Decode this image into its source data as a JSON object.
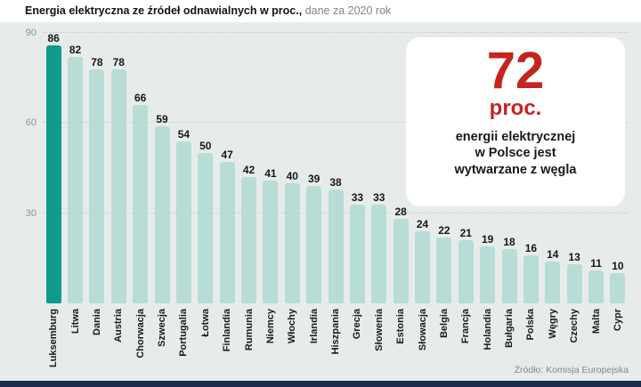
{
  "title": {
    "main": "Energia elektryczna ze źródeł odnawialnych w proc.,",
    "sub": " dane za 2020 rok"
  },
  "callout": {
    "number": "72",
    "unit": "proc.",
    "line1": "energii elektrycznej",
    "line2": "w Polsce jest",
    "line3": "wytwarzane z węgla"
  },
  "source": "Źródło: Komisja Europejska",
  "chart_data": {
    "type": "bar",
    "title": "Energia elektryczna ze źródeł odnawialnych w proc.",
    "subtitle": "dane za 2020 rok",
    "categories": [
      "Luksemburg",
      "Litwa",
      "Dania",
      "Austria",
      "Chorwacja",
      "Szwecja",
      "Portugalia",
      "Łotwa",
      "Finlandia",
      "Rumunia",
      "Niemcy",
      "Włochy",
      "Irlandia",
      "Hiszpania",
      "Grecja",
      "Słowenia",
      "Estonia",
      "Słowacja",
      "Belgia",
      "Francja",
      "Holandia",
      "Bułgaria",
      "Polska",
      "Węgry",
      "Czechy",
      "Malta",
      "Cypr"
    ],
    "values": [
      86,
      82,
      78,
      78,
      66,
      59,
      54,
      50,
      47,
      42,
      41,
      40,
      39,
      38,
      33,
      33,
      28,
      24,
      22,
      21,
      19,
      18,
      16,
      14,
      13,
      11,
      10
    ],
    "unit": "proc.",
    "ylim": [
      0,
      90
    ],
    "yticks": [
      30,
      60,
      90
    ],
    "highlight_index": 0,
    "bar_color": "#b8dcd6",
    "highlight_color": "#0d9b8c",
    "accent_red": "#c5241f",
    "grid": "dotted",
    "legend": "none",
    "source": "Źródło: Komisja Europejska"
  }
}
